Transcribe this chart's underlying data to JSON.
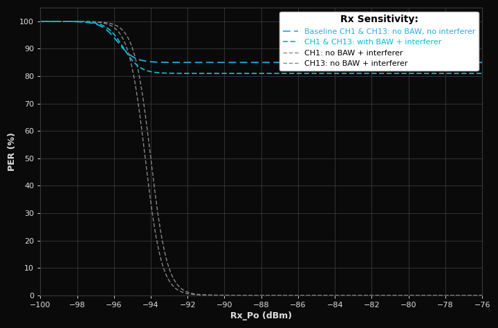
{
  "background_color": "#0a0a0a",
  "plot_bg_color": "#0a0a0a",
  "grid_color": "#3a3a3a",
  "text_color": "#e0e0e0",
  "xlabel": "Rx_Po (dBm)",
  "ylabel": "PER (%)",
  "xlim": [
    -100,
    -76
  ],
  "ylim": [
    0,
    105
  ],
  "xticks": [
    -100,
    -98,
    -96,
    -94,
    -92,
    -90,
    -88,
    -86,
    -84,
    -82,
    -80,
    -78,
    -76
  ],
  "yticks": [
    0,
    10,
    20,
    30,
    40,
    50,
    60,
    70,
    80,
    90,
    100
  ],
  "legend_title": "Rx Sensitivity:",
  "legend_entries": [
    "Baseline CH1 & CH13: no BAW, no interferer",
    "CH1 & CH13: with BAW + interferer",
    "CH1: no BAW + interferer",
    "CH13: no BAW + interferer"
  ],
  "cyan_color1": "#29abe2",
  "cyan_color2": "#00bcd4",
  "gray_color": "#888888",
  "axis_fontsize": 9,
  "tick_fontsize": 8,
  "legend_title_fontsize": 9,
  "legend_fontsize": 8
}
